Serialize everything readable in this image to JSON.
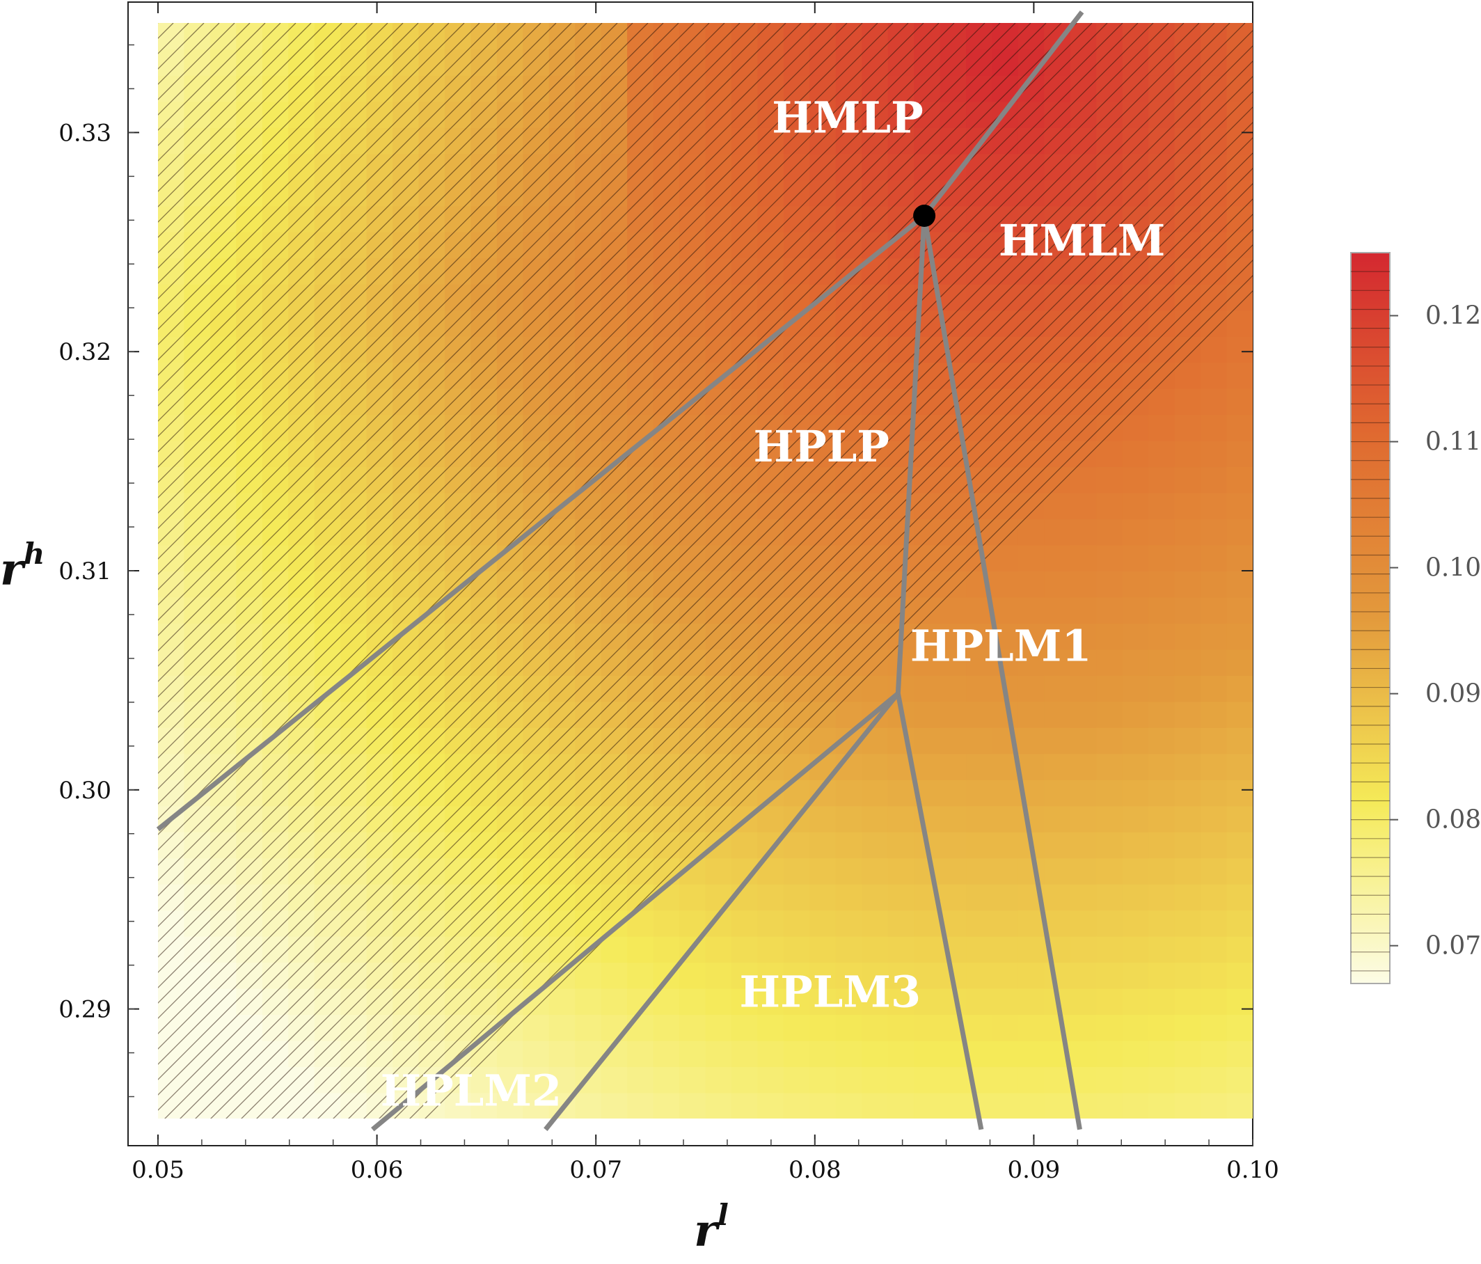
{
  "chart_data": {
    "type": "heatmap",
    "title": "",
    "xlabel": {
      "base": "r",
      "sup": "l"
    },
    "ylabel": {
      "base": "r",
      "sup": "h"
    },
    "xlim": [
      0.05,
      0.1
    ],
    "ylim": [
      0.285,
      0.335
    ],
    "x_ticks": [
      "0.05",
      "0.06",
      "0.07",
      "0.08",
      "0.09",
      "0.10"
    ],
    "x_tick_values": [
      0.05,
      0.06,
      0.07,
      0.08,
      0.09,
      0.1
    ],
    "y_ticks": [
      "0.29",
      "0.30",
      "0.31",
      "0.32",
      "0.33"
    ],
    "y_tick_values": [
      0.29,
      0.3,
      0.31,
      0.32,
      0.33
    ],
    "colorbar": {
      "range": [
        0.067,
        0.125
      ],
      "ticks": [
        "0.07",
        "0.08",
        "0.09",
        "0.10",
        "0.11",
        "0.12"
      ],
      "tick_values": [
        0.07,
        0.08,
        0.09,
        0.1,
        0.11,
        0.12
      ],
      "colors": [
        "#fcfce6",
        "#f5ea58",
        "#e39a3c",
        "#e06a30",
        "#d42830"
      ]
    },
    "regions": [
      {
        "name": "HMLP",
        "label_at": [
          0.0815,
          0.3305
        ]
      },
      {
        "name": "HMLM",
        "label_at": [
          0.0922,
          0.3249
        ]
      },
      {
        "name": "HPLP",
        "label_at": [
          0.0803,
          0.3155
        ]
      },
      {
        "name": "HPLM1",
        "label_at": [
          0.0885,
          0.3064
        ]
      },
      {
        "name": "HPLM3",
        "label_at": [
          0.0807,
          0.2906
        ]
      },
      {
        "name": "HPLM2",
        "label_at": [
          0.0643,
          0.2861
        ]
      }
    ],
    "boundaries": [
      [
        [
          0.05,
          0.2982
        ],
        [
          0.085,
          0.3262
        ],
        [
          0.0922,
          0.3355
        ]
      ],
      [
        [
          0.085,
          0.3262
        ],
        [
          0.0838,
          0.3044
        ],
        [
          0.0876,
          0.2845
        ]
      ],
      [
        [
          0.085,
          0.3262
        ],
        [
          0.0921,
          0.2845
        ]
      ],
      [
        [
          0.0838,
          0.3044
        ],
        [
          0.0598,
          0.2845
        ]
      ],
      [
        [
          0.0838,
          0.3044
        ],
        [
          0.0677,
          0.2845
        ]
      ]
    ],
    "special_point": [
      0.085,
      0.3262
    ]
  }
}
